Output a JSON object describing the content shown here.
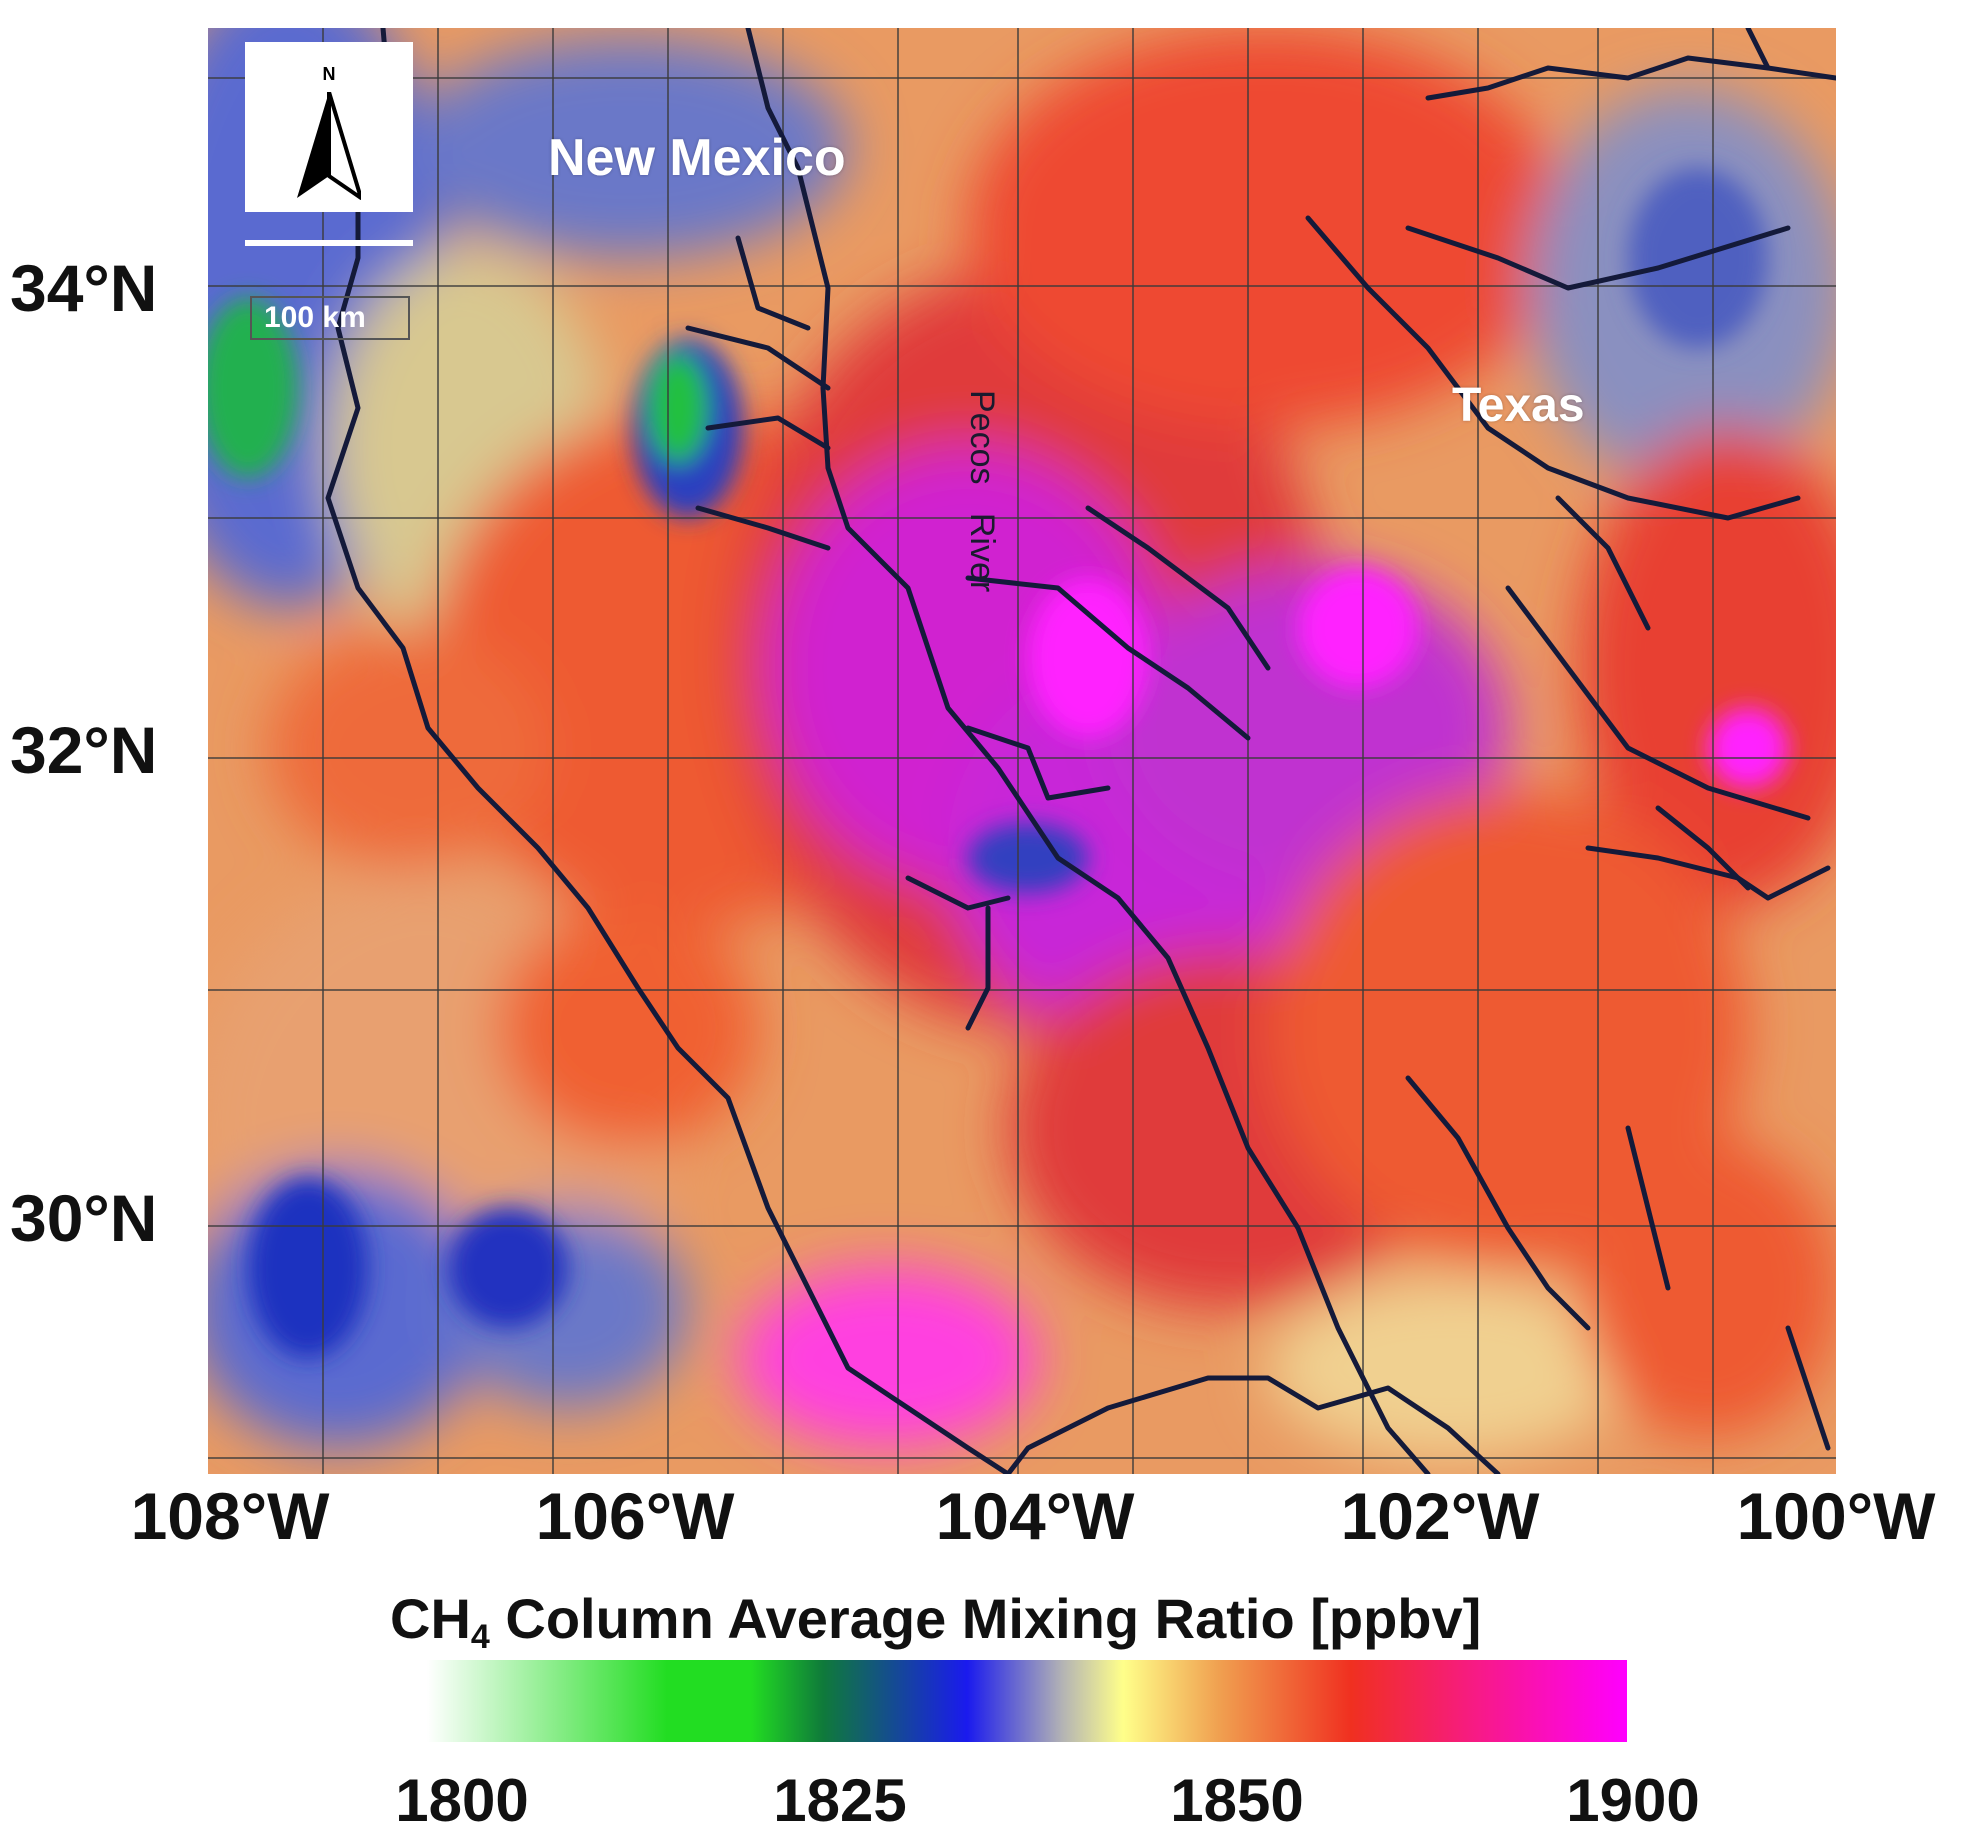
{
  "map": {
    "place_labels": {
      "new_mexico": "New Mexico",
      "texas": "Texas",
      "river_word1": "Pecos",
      "river_word2": "River"
    },
    "north_arrow": {
      "letter": "N"
    },
    "scale_bar": {
      "label": "100 km"
    },
    "latitude_labels": [
      "34°N",
      "32°N",
      "30°N"
    ],
    "longitude_labels": [
      "108°W",
      "106°W",
      "104°W",
      "102°W",
      "100°W"
    ],
    "lat_values": [
      34,
      32,
      30
    ],
    "lon_values": [
      -108,
      -106,
      -104,
      -102,
      -100
    ]
  },
  "colorbar": {
    "title_prefix": "CH",
    "title_subscript": "4",
    "title_suffix": " Column Average Mixing Ratio [ppbv]",
    "tick_labels": [
      "1800",
      "1825",
      "1850",
      "1900"
    ],
    "colors": {
      "white": "#ffffff",
      "green": "#22dd22",
      "dark_green": "#0f7a3a",
      "blue": "#1a1aee",
      "gray": "#b4b4b4",
      "yellow": "#ffff8a",
      "orange": "#f0a050",
      "red": "#f03020",
      "magenta": "#ff00ff"
    }
  }
}
